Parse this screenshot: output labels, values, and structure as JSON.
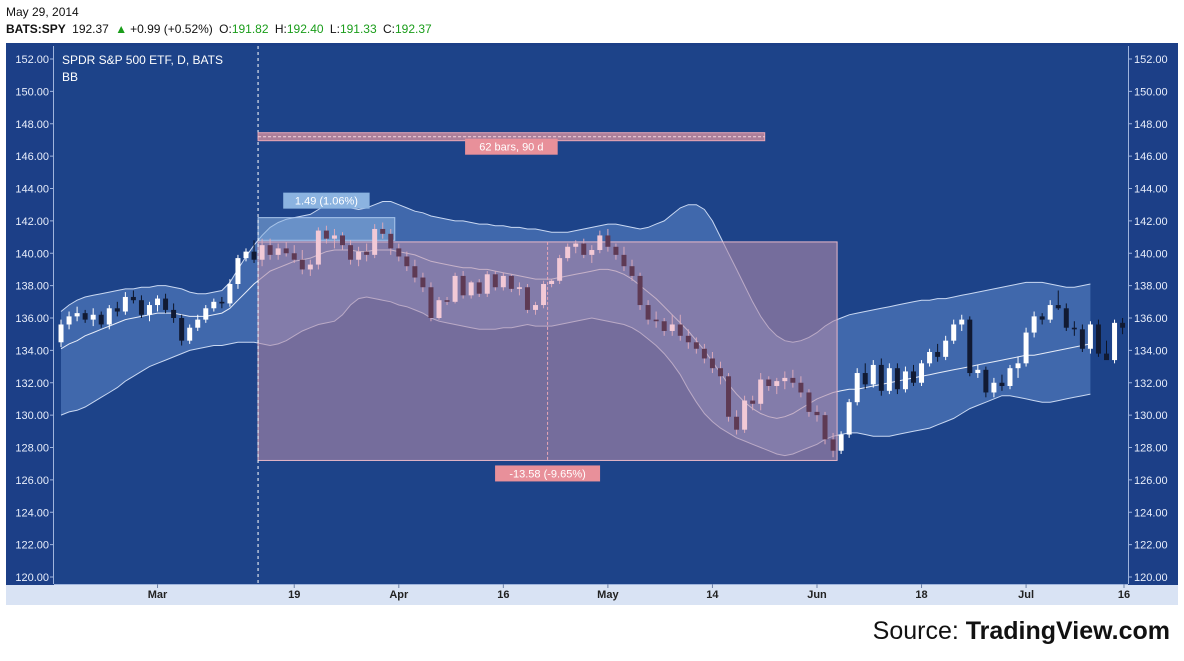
{
  "header": {
    "date": "May 29, 2014",
    "symbol": "BATS:SPY",
    "last": "192.37",
    "change": "+0.99 (+0.52%)",
    "open_label": "O:",
    "open": "191.82",
    "high_label": "H:",
    "high": "192.40",
    "low_label": "L:",
    "low": "191.33",
    "close_label": "C:",
    "close": "192.37"
  },
  "source": {
    "prefix": "Source: ",
    "brand": "TradingView.com"
  },
  "colors": {
    "background": "#1c3f87",
    "band": "#5d86c8",
    "range_box": "#b08aa8",
    "up_candle": "#ffffff",
    "down_candle": "#111a33",
    "measure_label": "#e8909a",
    "change_label": "#8bb3e0"
  },
  "chart_data": {
    "type": "candlestick",
    "title": "SPDR S&P 500 ETF, D, BATS",
    "indicator": "BB",
    "ylim": [
      120,
      152
    ],
    "y_ticks": [
      "152.00",
      "150.00",
      "148.00",
      "146.00",
      "144.00",
      "142.00",
      "140.00",
      "138.00",
      "136.00",
      "134.00",
      "132.00",
      "130.00",
      "128.00",
      "126.00",
      "124.00",
      "122.00",
      "120.00"
    ],
    "x_ticks": [
      {
        "label": "Mar",
        "bar": 12
      },
      {
        "label": "19",
        "bar": 29
      },
      {
        "label": "Apr",
        "bar": 42
      },
      {
        "label": "16",
        "bar": 55
      },
      {
        "label": "May",
        "bar": 68
      },
      {
        "label": "14",
        "bar": 81
      },
      {
        "label": "Jun",
        "bar": 94
      },
      {
        "label": "18",
        "bar": 107
      },
      {
        "label": "Jul",
        "bar": 120
      },
      {
        "label": "16",
        "bar": 133
      }
    ],
    "annotations": {
      "bars_range": {
        "label": "62 bars, 90 d",
        "from_bar": 25,
        "to_bar": 87,
        "y": 147.2
      },
      "measure_top": {
        "label": "1.49 (1.06%)",
        "from_bar": 25,
        "to_bar": 41,
        "y_from": 140.8,
        "y_to": 142.2
      },
      "measure_drop": {
        "label": "-13.58 (-9.65%)",
        "from_bar": 25,
        "to_bar": 96,
        "y_from": 140.7,
        "y_to": 127.2
      }
    },
    "candles": [
      [
        134.5,
        135.9,
        134.2,
        135.6
      ],
      [
        135.6,
        136.4,
        135.3,
        136.1
      ],
      [
        136.1,
        136.7,
        135.8,
        136.3
      ],
      [
        136.3,
        136.5,
        135.7,
        135.9
      ],
      [
        135.9,
        136.6,
        135.5,
        136.2
      ],
      [
        136.2,
        136.4,
        135.4,
        135.6
      ],
      [
        135.6,
        136.8,
        135.3,
        136.6
      ],
      [
        136.6,
        137.0,
        136.1,
        136.4
      ],
      [
        136.4,
        137.6,
        136.2,
        137.3
      ],
      [
        137.3,
        137.7,
        136.9,
        137.1
      ],
      [
        137.1,
        137.4,
        136.0,
        136.2
      ],
      [
        136.2,
        137.0,
        135.8,
        136.8
      ],
      [
        136.8,
        137.4,
        136.4,
        137.2
      ],
      [
        137.2,
        137.5,
        136.3,
        136.5
      ],
      [
        136.5,
        136.9,
        135.7,
        136.0
      ],
      [
        136.0,
        136.2,
        134.3,
        134.6
      ],
      [
        134.6,
        135.6,
        134.4,
        135.4
      ],
      [
        135.4,
        136.2,
        135.2,
        135.9
      ],
      [
        135.9,
        136.8,
        135.7,
        136.6
      ],
      [
        136.6,
        137.2,
        136.4,
        137.0
      ],
      [
        137.0,
        137.3,
        136.6,
        136.9
      ],
      [
        136.9,
        138.4,
        136.7,
        138.1
      ],
      [
        138.1,
        139.9,
        137.8,
        139.7
      ],
      [
        139.7,
        140.3,
        139.5,
        140.1
      ],
      [
        140.1,
        140.8,
        139.4,
        139.6
      ],
      [
        139.6,
        140.9,
        139.2,
        140.5
      ],
      [
        140.5,
        140.9,
        139.6,
        139.9
      ],
      [
        139.9,
        140.6,
        139.6,
        140.3
      ],
      [
        140.3,
        140.7,
        139.8,
        140.0
      ],
      [
        140.0,
        140.5,
        139.4,
        139.6
      ],
      [
        139.6,
        140.2,
        138.7,
        139.0
      ],
      [
        139.0,
        139.6,
        138.6,
        139.3
      ],
      [
        139.3,
        141.6,
        139.0,
        141.4
      ],
      [
        141.4,
        141.7,
        140.6,
        140.9
      ],
      [
        140.9,
        141.5,
        140.3,
        141.1
      ],
      [
        141.1,
        141.3,
        140.2,
        140.5
      ],
      [
        140.5,
        140.8,
        139.3,
        139.6
      ],
      [
        139.6,
        140.4,
        139.2,
        140.1
      ],
      [
        140.1,
        140.6,
        139.5,
        139.9
      ],
      [
        139.9,
        141.8,
        139.7,
        141.5
      ],
      [
        141.5,
        141.9,
        140.9,
        141.2
      ],
      [
        141.2,
        141.5,
        139.9,
        140.3
      ],
      [
        140.3,
        140.6,
        139.5,
        139.8
      ],
      [
        139.8,
        140.1,
        138.9,
        139.2
      ],
      [
        139.2,
        139.6,
        138.2,
        138.5
      ],
      [
        138.5,
        138.8,
        137.6,
        137.9
      ],
      [
        137.9,
        138.2,
        135.8,
        136.0
      ],
      [
        136.0,
        137.3,
        135.9,
        137.1
      ],
      [
        137.1,
        137.3,
        136.8,
        137.0
      ],
      [
        137.0,
        138.8,
        136.9,
        138.6
      ],
      [
        138.6,
        138.9,
        137.2,
        137.4
      ],
      [
        137.4,
        138.3,
        137.2,
        138.2
      ],
      [
        138.2,
        138.4,
        137.3,
        137.5
      ],
      [
        137.5,
        138.9,
        137.3,
        138.7
      ],
      [
        138.7,
        138.9,
        137.7,
        137.9
      ],
      [
        137.9,
        138.8,
        137.7,
        138.6
      ],
      [
        138.6,
        138.7,
        137.6,
        137.8
      ],
      [
        137.8,
        138.2,
        137.4,
        137.9
      ],
      [
        137.9,
        138.1,
        136.3,
        136.5
      ],
      [
        136.5,
        137.0,
        136.2,
        136.8
      ],
      [
        136.8,
        138.3,
        136.6,
        138.1
      ],
      [
        138.1,
        138.4,
        137.9,
        138.3
      ],
      [
        138.3,
        139.9,
        138.1,
        139.7
      ],
      [
        139.7,
        140.6,
        139.5,
        140.4
      ],
      [
        140.4,
        140.8,
        140.0,
        140.6
      ],
      [
        140.6,
        140.9,
        139.7,
        139.9
      ],
      [
        139.9,
        140.5,
        139.4,
        140.2
      ],
      [
        140.2,
        141.4,
        140.0,
        141.1
      ],
      [
        141.1,
        141.5,
        140.1,
        140.4
      ],
      [
        140.4,
        140.6,
        139.6,
        139.9
      ],
      [
        139.9,
        140.4,
        138.9,
        139.2
      ],
      [
        139.2,
        139.6,
        138.3,
        138.6
      ],
      [
        138.6,
        138.8,
        136.5,
        136.8
      ],
      [
        136.8,
        137.1,
        135.6,
        135.9
      ],
      [
        135.9,
        136.4,
        135.4,
        135.8
      ],
      [
        135.8,
        136.0,
        134.9,
        135.2
      ],
      [
        135.2,
        136.2,
        134.9,
        135.6
      ],
      [
        135.6,
        136.2,
        134.6,
        134.9
      ],
      [
        134.9,
        135.3,
        134.1,
        134.5
      ],
      [
        134.5,
        134.8,
        133.8,
        134.1
      ],
      [
        134.1,
        134.4,
        133.2,
        133.5
      ],
      [
        133.5,
        133.9,
        132.6,
        132.9
      ],
      [
        132.9,
        133.3,
        131.9,
        132.4
      ],
      [
        132.4,
        132.6,
        129.6,
        129.9
      ],
      [
        129.9,
        130.3,
        128.8,
        129.1
      ],
      [
        129.1,
        131.2,
        128.9,
        130.9
      ],
      [
        130.9,
        131.2,
        130.3,
        130.7
      ],
      [
        130.7,
        132.6,
        130.3,
        132.2
      ],
      [
        132.2,
        132.4,
        131.5,
        131.8
      ],
      [
        131.8,
        132.3,
        131.3,
        132.1
      ],
      [
        132.1,
        132.7,
        131.6,
        132.3
      ],
      [
        132.3,
        132.8,
        131.7,
        132.0
      ],
      [
        132.0,
        132.4,
        131.1,
        131.4
      ],
      [
        131.4,
        131.6,
        129.9,
        130.2
      ],
      [
        130.2,
        130.6,
        129.6,
        130.0
      ],
      [
        130.0,
        130.2,
        128.2,
        128.5
      ],
      [
        128.5,
        128.9,
        127.4,
        127.8
      ],
      [
        127.8,
        129.0,
        127.6,
        128.8
      ],
      [
        128.8,
        131.0,
        128.6,
        130.8
      ],
      [
        130.8,
        132.9,
        130.6,
        132.6
      ],
      [
        132.6,
        133.2,
        131.6,
        131.9
      ],
      [
        131.9,
        133.4,
        131.7,
        133.1
      ],
      [
        133.1,
        133.5,
        131.2,
        131.5
      ],
      [
        131.5,
        133.2,
        131.3,
        132.9
      ],
      [
        132.9,
        133.2,
        131.3,
        131.6
      ],
      [
        131.6,
        133.0,
        131.4,
        132.7
      ],
      [
        132.7,
        133.1,
        131.8,
        132.0
      ],
      [
        132.0,
        133.4,
        131.8,
        133.2
      ],
      [
        133.2,
        134.1,
        133.0,
        133.9
      ],
      [
        133.9,
        134.4,
        133.3,
        133.6
      ],
      [
        133.6,
        134.9,
        133.4,
        134.6
      ],
      [
        134.6,
        135.9,
        134.4,
        135.6
      ],
      [
        135.6,
        136.2,
        135.2,
        135.9
      ],
      [
        135.9,
        136.1,
        132.4,
        132.6
      ],
      [
        132.6,
        133.1,
        132.3,
        132.8
      ],
      [
        132.8,
        133.0,
        131.1,
        131.4
      ],
      [
        131.4,
        132.3,
        131.1,
        132.0
      ],
      [
        132.0,
        132.5,
        131.5,
        131.8
      ],
      [
        131.8,
        133.1,
        131.6,
        132.9
      ],
      [
        132.9,
        133.6,
        132.3,
        133.2
      ],
      [
        133.2,
        135.4,
        133.0,
        135.1
      ],
      [
        135.1,
        136.4,
        134.8,
        136.1
      ],
      [
        136.1,
        136.3,
        135.6,
        135.9
      ],
      [
        135.9,
        137.1,
        135.7,
        136.8
      ],
      [
        136.8,
        137.7,
        136.5,
        136.6
      ],
      [
        136.6,
        136.9,
        135.2,
        135.4
      ],
      [
        135.4,
        135.8,
        134.9,
        135.3
      ],
      [
        135.3,
        135.6,
        133.9,
        134.1
      ],
      [
        134.1,
        135.8,
        133.8,
        135.6
      ],
      [
        135.6,
        135.9,
        133.6,
        133.8
      ],
      [
        133.8,
        134.6,
        133.5,
        133.4
      ],
      [
        133.4,
        135.9,
        133.2,
        135.7
      ],
      [
        135.7,
        136.0,
        135.0,
        135.4
      ]
    ],
    "bollinger": {
      "upper": [
        136.4,
        136.8,
        137.1,
        137.3,
        137.4,
        137.5,
        137.6,
        137.7,
        137.8,
        137.8,
        137.9,
        137.9,
        138.0,
        138.0,
        137.9,
        137.8,
        137.6,
        137.5,
        137.5,
        137.6,
        137.7,
        138.2,
        139.0,
        139.8,
        140.5,
        141.1,
        141.6,
        141.9,
        142.1,
        142.2,
        142.3,
        142.4,
        142.7,
        143.0,
        143.1,
        143.0,
        142.8,
        142.7,
        142.8,
        143.0,
        143.2,
        143.2,
        143.0,
        142.8,
        142.6,
        142.5,
        142.3,
        142.2,
        142.1,
        142.0,
        142.0,
        141.9,
        141.8,
        141.8,
        141.7,
        141.7,
        141.6,
        141.6,
        141.5,
        141.5,
        141.4,
        141.3,
        141.3,
        141.3,
        141.4,
        141.5,
        141.6,
        141.7,
        141.8,
        141.8,
        141.7,
        141.6,
        141.5,
        141.6,
        141.8,
        142.0,
        142.4,
        142.8,
        143.0,
        143.0,
        142.7,
        142.0,
        141.0,
        140.0,
        139.0,
        138.0,
        137.0,
        136.1,
        135.4,
        134.9,
        134.6,
        134.5,
        134.6,
        134.8,
        135.1,
        135.5,
        135.8,
        136.0,
        136.2,
        136.3,
        136.4,
        136.5,
        136.6,
        136.7,
        136.8,
        136.9,
        137.0,
        137.1,
        137.1,
        137.2,
        137.2,
        137.3,
        137.4,
        137.5,
        137.6,
        137.7,
        137.8,
        137.9,
        138.0,
        138.1,
        138.2,
        138.2,
        138.2,
        138.1,
        138.0,
        137.9,
        137.9,
        138.0,
        138.1
      ],
      "middle": [
        134.1,
        134.4,
        134.6,
        134.9,
        135.1,
        135.3,
        135.5,
        135.7,
        135.9,
        136.0,
        136.1,
        136.2,
        136.3,
        136.3,
        136.3,
        136.2,
        136.1,
        136.1,
        136.1,
        136.2,
        136.3,
        136.6,
        137.1,
        137.6,
        138.1,
        138.5,
        138.9,
        139.1,
        139.3,
        139.5,
        139.6,
        139.7,
        139.9,
        140.1,
        140.2,
        140.2,
        140.2,
        140.1,
        140.1,
        140.2,
        140.2,
        140.2,
        140.1,
        140.0,
        139.9,
        139.7,
        139.5,
        139.4,
        139.3,
        139.2,
        139.1,
        139.1,
        139.0,
        139.0,
        138.9,
        138.8,
        138.7,
        138.6,
        138.5,
        138.4,
        138.4,
        138.4,
        138.5,
        138.6,
        138.7,
        138.8,
        138.9,
        139.0,
        139.0,
        138.9,
        138.7,
        138.4,
        138.0,
        137.6,
        137.2,
        136.7,
        136.2,
        135.7,
        135.2,
        134.6,
        134.0,
        133.3,
        132.6,
        131.9,
        131.3,
        130.8,
        130.4,
        130.1,
        129.9,
        129.8,
        129.9,
        130.1,
        130.4,
        130.7,
        131.0,
        131.2,
        131.4,
        131.5,
        131.6,
        131.6,
        131.7,
        131.8,
        131.9,
        132.0,
        132.1,
        132.2,
        132.3,
        132.4,
        132.5,
        132.6,
        132.7,
        132.8,
        132.9,
        133.0,
        133.1,
        133.2,
        133.3,
        133.4,
        133.5,
        133.6,
        133.7,
        133.7,
        133.8,
        133.9,
        134.0,
        134.1,
        134.2,
        134.3,
        134.4
      ],
      "lower": [
        130.0,
        130.2,
        130.3,
        130.5,
        130.8,
        131.1,
        131.4,
        131.7,
        132.1,
        132.4,
        132.7,
        133.0,
        133.2,
        133.4,
        133.6,
        133.8,
        134.0,
        134.1,
        134.2,
        134.3,
        134.3,
        134.4,
        134.5,
        134.5,
        134.5,
        134.4,
        134.3,
        134.4,
        134.6,
        134.9,
        135.2,
        135.4,
        135.6,
        135.7,
        135.8,
        136.2,
        136.8,
        137.2,
        137.3,
        137.2,
        137.1,
        137.0,
        136.8,
        136.7,
        136.5,
        136.3,
        136.0,
        135.8,
        135.7,
        135.6,
        135.5,
        135.4,
        135.3,
        135.3,
        135.3,
        135.4,
        135.4,
        135.5,
        135.6,
        135.5,
        135.5,
        135.5,
        135.6,
        135.7,
        135.8,
        135.9,
        136.0,
        135.9,
        135.8,
        135.7,
        135.6,
        135.4,
        135.1,
        134.7,
        134.3,
        133.8,
        133.2,
        132.5,
        131.6,
        130.8,
        130.1,
        129.6,
        129.2,
        128.9,
        128.6,
        128.4,
        128.2,
        128.0,
        127.8,
        127.6,
        127.5,
        127.6,
        127.8,
        128.0,
        128.2,
        128.5,
        128.7,
        128.8,
        128.9,
        128.9,
        128.8,
        128.7,
        128.7,
        128.7,
        128.8,
        128.9,
        129.0,
        129.1,
        129.2,
        129.4,
        129.6,
        129.8,
        130.1,
        130.4,
        130.6,
        130.8,
        131.0,
        131.2,
        131.2,
        131.1,
        131.0,
        130.9,
        130.8,
        130.8,
        130.9,
        131.0,
        131.1,
        131.2,
        131.3
      ]
    }
  }
}
